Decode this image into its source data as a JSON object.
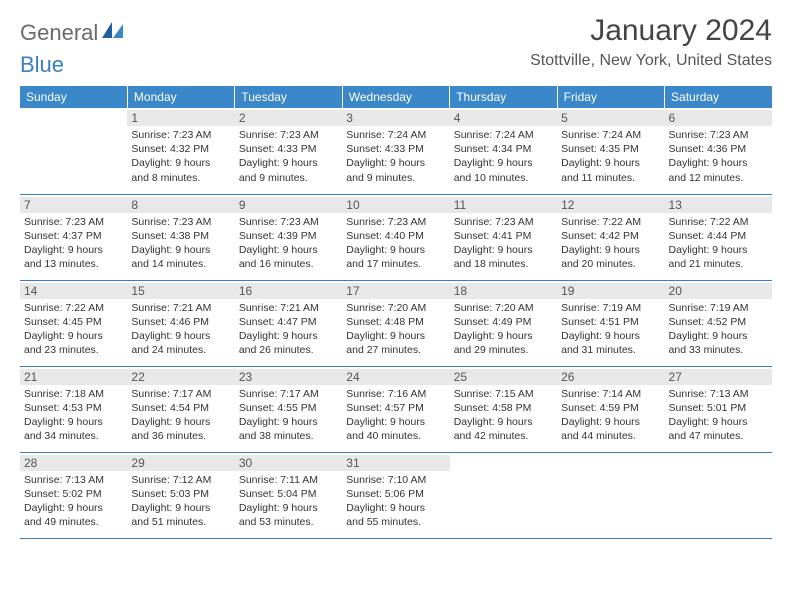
{
  "logo": {
    "text1": "General",
    "text2": "Blue"
  },
  "title": "January 2024",
  "location": "Stottville, New York, United States",
  "colors": {
    "header_bg": "#3a87c9",
    "header_text": "#ffffff",
    "border": "#3a7fc4",
    "daynum_bg": "#e8e8e8",
    "body_text": "#333333",
    "logo_gray": "#6a6a6a",
    "logo_blue": "#3a7fc4"
  },
  "day_headers": [
    "Sunday",
    "Monday",
    "Tuesday",
    "Wednesday",
    "Thursday",
    "Friday",
    "Saturday"
  ],
  "weeks": [
    [
      {
        "num": "",
        "sunrise": "",
        "sunset": "",
        "daylight1": "",
        "daylight2": ""
      },
      {
        "num": "1",
        "sunrise": "Sunrise: 7:23 AM",
        "sunset": "Sunset: 4:32 PM",
        "daylight1": "Daylight: 9 hours",
        "daylight2": "and 8 minutes."
      },
      {
        "num": "2",
        "sunrise": "Sunrise: 7:23 AM",
        "sunset": "Sunset: 4:33 PM",
        "daylight1": "Daylight: 9 hours",
        "daylight2": "and 9 minutes."
      },
      {
        "num": "3",
        "sunrise": "Sunrise: 7:24 AM",
        "sunset": "Sunset: 4:33 PM",
        "daylight1": "Daylight: 9 hours",
        "daylight2": "and 9 minutes."
      },
      {
        "num": "4",
        "sunrise": "Sunrise: 7:24 AM",
        "sunset": "Sunset: 4:34 PM",
        "daylight1": "Daylight: 9 hours",
        "daylight2": "and 10 minutes."
      },
      {
        "num": "5",
        "sunrise": "Sunrise: 7:24 AM",
        "sunset": "Sunset: 4:35 PM",
        "daylight1": "Daylight: 9 hours",
        "daylight2": "and 11 minutes."
      },
      {
        "num": "6",
        "sunrise": "Sunrise: 7:23 AM",
        "sunset": "Sunset: 4:36 PM",
        "daylight1": "Daylight: 9 hours",
        "daylight2": "and 12 minutes."
      }
    ],
    [
      {
        "num": "7",
        "sunrise": "Sunrise: 7:23 AM",
        "sunset": "Sunset: 4:37 PM",
        "daylight1": "Daylight: 9 hours",
        "daylight2": "and 13 minutes."
      },
      {
        "num": "8",
        "sunrise": "Sunrise: 7:23 AM",
        "sunset": "Sunset: 4:38 PM",
        "daylight1": "Daylight: 9 hours",
        "daylight2": "and 14 minutes."
      },
      {
        "num": "9",
        "sunrise": "Sunrise: 7:23 AM",
        "sunset": "Sunset: 4:39 PM",
        "daylight1": "Daylight: 9 hours",
        "daylight2": "and 16 minutes."
      },
      {
        "num": "10",
        "sunrise": "Sunrise: 7:23 AM",
        "sunset": "Sunset: 4:40 PM",
        "daylight1": "Daylight: 9 hours",
        "daylight2": "and 17 minutes."
      },
      {
        "num": "11",
        "sunrise": "Sunrise: 7:23 AM",
        "sunset": "Sunset: 4:41 PM",
        "daylight1": "Daylight: 9 hours",
        "daylight2": "and 18 minutes."
      },
      {
        "num": "12",
        "sunrise": "Sunrise: 7:22 AM",
        "sunset": "Sunset: 4:42 PM",
        "daylight1": "Daylight: 9 hours",
        "daylight2": "and 20 minutes."
      },
      {
        "num": "13",
        "sunrise": "Sunrise: 7:22 AM",
        "sunset": "Sunset: 4:44 PM",
        "daylight1": "Daylight: 9 hours",
        "daylight2": "and 21 minutes."
      }
    ],
    [
      {
        "num": "14",
        "sunrise": "Sunrise: 7:22 AM",
        "sunset": "Sunset: 4:45 PM",
        "daylight1": "Daylight: 9 hours",
        "daylight2": "and 23 minutes."
      },
      {
        "num": "15",
        "sunrise": "Sunrise: 7:21 AM",
        "sunset": "Sunset: 4:46 PM",
        "daylight1": "Daylight: 9 hours",
        "daylight2": "and 24 minutes."
      },
      {
        "num": "16",
        "sunrise": "Sunrise: 7:21 AM",
        "sunset": "Sunset: 4:47 PM",
        "daylight1": "Daylight: 9 hours",
        "daylight2": "and 26 minutes."
      },
      {
        "num": "17",
        "sunrise": "Sunrise: 7:20 AM",
        "sunset": "Sunset: 4:48 PM",
        "daylight1": "Daylight: 9 hours",
        "daylight2": "and 27 minutes."
      },
      {
        "num": "18",
        "sunrise": "Sunrise: 7:20 AM",
        "sunset": "Sunset: 4:49 PM",
        "daylight1": "Daylight: 9 hours",
        "daylight2": "and 29 minutes."
      },
      {
        "num": "19",
        "sunrise": "Sunrise: 7:19 AM",
        "sunset": "Sunset: 4:51 PM",
        "daylight1": "Daylight: 9 hours",
        "daylight2": "and 31 minutes."
      },
      {
        "num": "20",
        "sunrise": "Sunrise: 7:19 AM",
        "sunset": "Sunset: 4:52 PM",
        "daylight1": "Daylight: 9 hours",
        "daylight2": "and 33 minutes."
      }
    ],
    [
      {
        "num": "21",
        "sunrise": "Sunrise: 7:18 AM",
        "sunset": "Sunset: 4:53 PM",
        "daylight1": "Daylight: 9 hours",
        "daylight2": "and 34 minutes."
      },
      {
        "num": "22",
        "sunrise": "Sunrise: 7:17 AM",
        "sunset": "Sunset: 4:54 PM",
        "daylight1": "Daylight: 9 hours",
        "daylight2": "and 36 minutes."
      },
      {
        "num": "23",
        "sunrise": "Sunrise: 7:17 AM",
        "sunset": "Sunset: 4:55 PM",
        "daylight1": "Daylight: 9 hours",
        "daylight2": "and 38 minutes."
      },
      {
        "num": "24",
        "sunrise": "Sunrise: 7:16 AM",
        "sunset": "Sunset: 4:57 PM",
        "daylight1": "Daylight: 9 hours",
        "daylight2": "and 40 minutes."
      },
      {
        "num": "25",
        "sunrise": "Sunrise: 7:15 AM",
        "sunset": "Sunset: 4:58 PM",
        "daylight1": "Daylight: 9 hours",
        "daylight2": "and 42 minutes."
      },
      {
        "num": "26",
        "sunrise": "Sunrise: 7:14 AM",
        "sunset": "Sunset: 4:59 PM",
        "daylight1": "Daylight: 9 hours",
        "daylight2": "and 44 minutes."
      },
      {
        "num": "27",
        "sunrise": "Sunrise: 7:13 AM",
        "sunset": "Sunset: 5:01 PM",
        "daylight1": "Daylight: 9 hours",
        "daylight2": "and 47 minutes."
      }
    ],
    [
      {
        "num": "28",
        "sunrise": "Sunrise: 7:13 AM",
        "sunset": "Sunset: 5:02 PM",
        "daylight1": "Daylight: 9 hours",
        "daylight2": "and 49 minutes."
      },
      {
        "num": "29",
        "sunrise": "Sunrise: 7:12 AM",
        "sunset": "Sunset: 5:03 PM",
        "daylight1": "Daylight: 9 hours",
        "daylight2": "and 51 minutes."
      },
      {
        "num": "30",
        "sunrise": "Sunrise: 7:11 AM",
        "sunset": "Sunset: 5:04 PM",
        "daylight1": "Daylight: 9 hours",
        "daylight2": "and 53 minutes."
      },
      {
        "num": "31",
        "sunrise": "Sunrise: 7:10 AM",
        "sunset": "Sunset: 5:06 PM",
        "daylight1": "Daylight: 9 hours",
        "daylight2": "and 55 minutes."
      },
      {
        "num": "",
        "sunrise": "",
        "sunset": "",
        "daylight1": "",
        "daylight2": ""
      },
      {
        "num": "",
        "sunrise": "",
        "sunset": "",
        "daylight1": "",
        "daylight2": ""
      },
      {
        "num": "",
        "sunrise": "",
        "sunset": "",
        "daylight1": "",
        "daylight2": ""
      }
    ]
  ]
}
